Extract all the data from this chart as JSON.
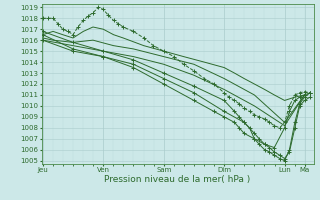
{
  "bg_color": "#cce8e8",
  "grid_color_major": "#aacccc",
  "grid_color_minor": "#bbdddd",
  "line_color": "#2d6a2d",
  "marker_color": "#2d6a2d",
  "ylim": [
    1005,
    1019
  ],
  "yticks": [
    1005,
    1006,
    1007,
    1008,
    1009,
    1010,
    1011,
    1012,
    1013,
    1014,
    1015,
    1016,
    1017,
    1018,
    1019
  ],
  "xtick_labels": [
    "Jeu",
    "Ven",
    "Sam",
    "Dim",
    "Lun",
    "Ma"
  ],
  "xtick_positions": [
    0,
    1,
    2,
    3,
    4,
    4.33
  ],
  "xlabel": "Pression niveau de la mer( hPa )",
  "series": [
    {
      "x": [
        0.0,
        0.08,
        0.17,
        0.25,
        0.33,
        0.42,
        0.5,
        0.58,
        0.67,
        0.75,
        0.83,
        0.92,
        1.0,
        1.08,
        1.17,
        1.25,
        1.33,
        1.5,
        1.67,
        1.83,
        2.0,
        2.17,
        2.33,
        2.5,
        2.67,
        2.83,
        3.0,
        3.08,
        3.17,
        3.25,
        3.33,
        3.42,
        3.5,
        3.58,
        3.67,
        3.75,
        3.83,
        3.92,
        4.0,
        4.08,
        4.17,
        4.25,
        4.33,
        4.42
      ],
      "y": [
        1018.0,
        1018.0,
        1018.0,
        1017.5,
        1017.0,
        1016.8,
        1016.5,
        1017.2,
        1017.8,
        1018.2,
        1018.5,
        1019.0,
        1018.8,
        1018.3,
        1017.8,
        1017.5,
        1017.2,
        1016.8,
        1016.2,
        1015.5,
        1015.0,
        1014.5,
        1013.8,
        1013.2,
        1012.5,
        1012.0,
        1011.2,
        1010.8,
        1010.5,
        1010.2,
        1009.8,
        1009.5,
        1009.2,
        1009.0,
        1008.8,
        1008.5,
        1008.2,
        1008.0,
        1008.5,
        1010.0,
        1011.0,
        1011.2,
        1011.3,
        1011.2
      ],
      "style": "dashed",
      "marker": true
    },
    {
      "x": [
        0.0,
        0.17,
        0.33,
        0.5,
        0.67,
        0.83,
        1.0,
        1.17,
        1.33,
        1.67,
        2.0,
        2.33,
        2.67,
        3.0,
        3.17,
        3.33,
        3.5,
        3.67,
        3.83,
        4.0,
        4.17,
        4.33
      ],
      "y": [
        1016.5,
        1016.8,
        1016.5,
        1016.2,
        1016.8,
        1017.2,
        1017.0,
        1016.5,
        1016.2,
        1015.5,
        1015.0,
        1014.5,
        1014.0,
        1013.5,
        1013.0,
        1012.5,
        1012.0,
        1011.5,
        1011.0,
        1010.5,
        1010.8,
        1011.0
      ],
      "style": "solid",
      "marker": false
    },
    {
      "x": [
        0.0,
        0.17,
        0.5,
        0.83,
        1.17,
        1.5,
        2.0,
        2.5,
        3.0,
        3.5,
        4.0,
        4.33
      ],
      "y": [
        1016.2,
        1016.0,
        1015.8,
        1016.0,
        1015.5,
        1015.2,
        1014.5,
        1013.8,
        1012.5,
        1011.0,
        1008.5,
        1011.0
      ],
      "style": "solid",
      "marker": false
    },
    {
      "x": [
        0.0,
        0.5,
        1.0,
        1.5,
        2.0,
        2.5,
        3.0,
        3.5,
        4.0,
        4.33
      ],
      "y": [
        1016.0,
        1015.5,
        1015.0,
        1014.5,
        1013.8,
        1012.8,
        1011.5,
        1010.0,
        1008.2,
        1011.0
      ],
      "style": "solid",
      "marker": false
    },
    {
      "x": [
        0.0,
        0.5,
        1.0,
        1.5,
        2.0,
        2.5,
        3.0,
        3.33,
        3.5,
        3.58,
        3.67,
        3.75,
        3.83,
        3.92,
        4.0,
        4.08,
        4.17,
        4.25,
        4.33,
        4.42
      ],
      "y": [
        1016.0,
        1015.0,
        1014.5,
        1013.8,
        1012.5,
        1011.2,
        1009.5,
        1008.5,
        1007.5,
        1007.0,
        1006.5,
        1006.2,
        1005.8,
        1005.5,
        1005.2,
        1005.8,
        1008.0,
        1010.0,
        1010.5,
        1010.8
      ],
      "style": "solid",
      "marker": true
    },
    {
      "x": [
        0.0,
        0.5,
        1.0,
        1.5,
        2.0,
        2.5,
        2.83,
        3.0,
        3.17,
        3.25,
        3.33,
        3.5,
        3.67,
        3.83,
        4.0,
        4.08,
        4.17,
        4.25,
        4.33,
        4.42
      ],
      "y": [
        1016.5,
        1015.2,
        1014.5,
        1013.5,
        1012.0,
        1010.5,
        1009.5,
        1009.0,
        1008.5,
        1008.0,
        1007.5,
        1007.0,
        1006.5,
        1006.2,
        1008.0,
        1009.5,
        1010.5,
        1010.8,
        1011.0,
        1011.2
      ],
      "style": "solid",
      "marker": true
    },
    {
      "x": [
        0.0,
        0.5,
        1.0,
        1.5,
        2.0,
        2.5,
        3.0,
        3.17,
        3.25,
        3.33,
        3.42,
        3.5,
        3.58,
        3.67,
        3.75,
        3.83,
        3.92,
        4.0,
        4.08,
        4.17,
        4.25,
        4.33,
        4.42
      ],
      "y": [
        1016.8,
        1015.8,
        1015.0,
        1014.2,
        1013.0,
        1011.8,
        1010.5,
        1009.5,
        1009.0,
        1008.5,
        1008.0,
        1007.0,
        1006.5,
        1006.0,
        1005.8,
        1005.5,
        1005.2,
        1005.0,
        1006.0,
        1008.5,
        1010.2,
        1010.8,
        1011.2
      ],
      "style": "solid",
      "marker": true
    }
  ]
}
